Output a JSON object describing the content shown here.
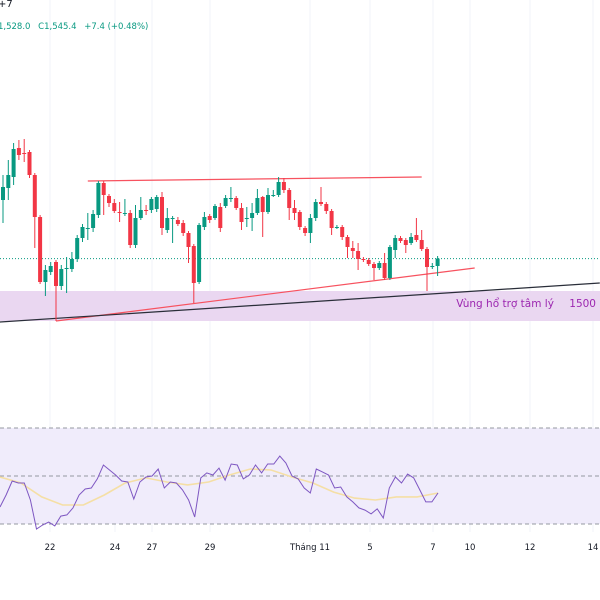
{
  "header": {
    "symbol_fragment": "+7",
    "low_value": "1,528.0",
    "close_value": "C1,545.4",
    "change": "+7.4 (+0.48%)"
  },
  "annotation": {
    "zone_label": "Vùng hổ trợ tâm lý",
    "zone_value": "1500"
  },
  "colors": {
    "up": "#089981",
    "down": "#f23645",
    "trendline": "#f7525f",
    "baseline": "#2a2e39",
    "support_zone": "#ead7f1",
    "rsi_line": "#7e57c2",
    "rsi_ma": "#f5dfa5",
    "rsi_band": "#f0ecfb",
    "zone_text": "#9c27b0"
  },
  "chart_data": [
    {
      "type": "candlestick",
      "last_price": 1545.4,
      "x_ticks": [
        "22",
        "24",
        "27",
        "29",
        "Tháng 11",
        "5",
        "7",
        "10",
        "12",
        "14"
      ],
      "ohlc": [
        [
          1604,
          1629,
          1581,
          1617
        ],
        [
          1616,
          1644,
          1604,
          1629
        ],
        [
          1627,
          1661,
          1619,
          1655
        ],
        [
          1656,
          1664,
          1644,
          1649
        ],
        [
          1651,
          1665,
          1642,
          1650
        ],
        [
          1652,
          1654,
          1626,
          1629
        ],
        [
          1629,
          1631,
          1556,
          1587
        ],
        [
          1587,
          1589,
          1520,
          1522
        ],
        [
          1522,
          1539,
          1508,
          1534
        ],
        [
          1532,
          1542,
          1529,
          1538
        ],
        [
          1542,
          1544,
          1483,
          1518
        ],
        [
          1518,
          1539,
          1514,
          1535
        ],
        [
          1536,
          1547,
          1511,
          1536
        ],
        [
          1535,
          1552,
          1532,
          1545
        ],
        [
          1545,
          1569,
          1542,
          1566
        ],
        [
          1566,
          1580,
          1562,
          1577
        ],
        [
          1576,
          1591,
          1564,
          1576
        ],
        [
          1576,
          1594,
          1572,
          1590
        ],
        [
          1589,
          1623,
          1586,
          1621
        ],
        [
          1621,
          1623,
          1589,
          1609
        ],
        [
          1608,
          1610,
          1597,
          1601
        ],
        [
          1601,
          1605,
          1591,
          1593
        ],
        [
          1592,
          1602,
          1582,
          1591
        ],
        [
          1591,
          1605,
          1588,
          1591
        ],
        [
          1591,
          1594,
          1556,
          1559
        ],
        [
          1559,
          1599,
          1556,
          1586
        ],
        [
          1586,
          1607,
          1584,
          1594
        ],
        [
          1594,
          1599,
          1589,
          1593
        ],
        [
          1594,
          1607,
          1591,
          1605
        ],
        [
          1595,
          1609,
          1592,
          1607
        ],
        [
          1607,
          1612,
          1569,
          1576
        ],
        [
          1574,
          1596,
          1571,
          1586
        ],
        [
          1586,
          1588,
          1561,
          1586
        ],
        [
          1584,
          1587,
          1578,
          1580
        ],
        [
          1581,
          1584,
          1568,
          1571
        ],
        [
          1571,
          1573,
          1541,
          1557
        ],
        [
          1558,
          1560,
          1501,
          1521
        ],
        [
          1522,
          1581,
          1520,
          1579
        ],
        [
          1577,
          1592,
          1574,
          1587
        ],
        [
          1588,
          1590,
          1581,
          1584
        ],
        [
          1586,
          1600,
          1584,
          1598
        ],
        [
          1597,
          1601,
          1572,
          1576
        ],
        [
          1598,
          1609,
          1596,
          1606
        ],
        [
          1606,
          1617,
          1602,
          1606
        ],
        [
          1606,
          1608,
          1594,
          1596
        ],
        [
          1596,
          1601,
          1574,
          1582
        ],
        [
          1586,
          1597,
          1577,
          1586
        ],
        [
          1586,
          1601,
          1573,
          1591
        ],
        [
          1591,
          1615,
          1589,
          1606
        ],
        [
          1607,
          1608,
          1567,
          1592
        ],
        [
          1592,
          1616,
          1590,
          1609
        ],
        [
          1609,
          1614,
          1607,
          1609
        ],
        [
          1609,
          1627,
          1607,
          1622
        ],
        [
          1622,
          1626,
          1611,
          1614
        ],
        [
          1614,
          1616,
          1584,
          1596
        ],
        [
          1596,
          1604,
          1584,
          1591
        ],
        [
          1592,
          1594,
          1574,
          1577
        ],
        [
          1576,
          1578,
          1568,
          1571
        ],
        [
          1571,
          1590,
          1561,
          1586
        ],
        [
          1586,
          1605,
          1583,
          1602
        ],
        [
          1602,
          1617,
          1598,
          1600
        ],
        [
          1600,
          1602,
          1590,
          1593
        ],
        [
          1593,
          1595,
          1569,
          1576
        ],
        [
          1577,
          1579,
          1575,
          1577
        ],
        [
          1577,
          1579,
          1564,
          1567
        ],
        [
          1567,
          1569,
          1546,
          1557
        ],
        [
          1556,
          1563,
          1546,
          1553
        ],
        [
          1553,
          1561,
          1534,
          1545
        ],
        [
          1545,
          1547,
          1542,
          1544
        ],
        [
          1544,
          1546,
          1538,
          1540
        ],
        [
          1540,
          1542,
          1524,
          1536
        ],
        [
          1536,
          1543,
          1534,
          1541
        ],
        [
          1541,
          1551,
          1524,
          1526
        ],
        [
          1526,
          1559,
          1524,
          1557
        ],
        [
          1554,
          1569,
          1546,
          1566
        ],
        [
          1566,
          1568,
          1561,
          1563
        ],
        [
          1564,
          1566,
          1551,
          1559
        ],
        [
          1561,
          1571,
          1559,
          1567
        ],
        [
          1569,
          1586,
          1562,
          1564
        ],
        [
          1564,
          1574,
          1553,
          1555
        ],
        [
          1555,
          1557,
          1513,
          1537
        ],
        [
          1537,
          1541,
          1535,
          1538
        ],
        [
          1538,
          1548,
          1528,
          1545.4
        ]
      ],
      "support_zone": [
        1483,
        1513
      ],
      "trendlines": [
        {
          "kind": "resistance",
          "from": [
            16,
            1623
          ],
          "to": [
            79,
            1627
          ]
        },
        {
          "kind": "rising-support",
          "from": [
            10,
            1483
          ],
          "to": [
            89,
            1536
          ]
        },
        {
          "kind": "long-term-support",
          "from": [
            -0.6,
            1482
          ],
          "to": [
            112.6,
            1521
          ]
        }
      ]
    },
    {
      "type": "line",
      "indicator": "RSI",
      "levels": [
        70,
        50,
        30
      ],
      "rsi": [
        37.1,
        42.1,
        47.9,
        47.1,
        47.1,
        40,
        27.9,
        29.6,
        30.8,
        29.2,
        33.3,
        33.8,
        36.7,
        42.1,
        44.6,
        45,
        48.8,
        54.6,
        52.5,
        50.4,
        47.9,
        47.5,
        40.4,
        47.5,
        49.6,
        50,
        52.9,
        45,
        47.5,
        47.1,
        44.2,
        40,
        32.9,
        49.2,
        51.3,
        50.4,
        53.3,
        48.3,
        55,
        54.6,
        48.8,
        50.4,
        54.6,
        51.3,
        55,
        55,
        58.3,
        55.4,
        50,
        48.8,
        45,
        42.9,
        52.9,
        51.7,
        50.4,
        45,
        45.4,
        41.3,
        39.2,
        36.7,
        35.8,
        34.2,
        36.3,
        32.5,
        45,
        49.6,
        47.1,
        50.8,
        49.2,
        44.2,
        39.2,
        39.2,
        42.9
      ],
      "rsi_ma": [
        49.6,
        47.1,
        41.3,
        37.9,
        37.9,
        42.1,
        47.1,
        49.2,
        47.5,
        46.3,
        47.5,
        50.4,
        52.9,
        52.5,
        49.6,
        47.1,
        43.3,
        40.8,
        40,
        41.3,
        41.3,
        42.9
      ]
    }
  ]
}
